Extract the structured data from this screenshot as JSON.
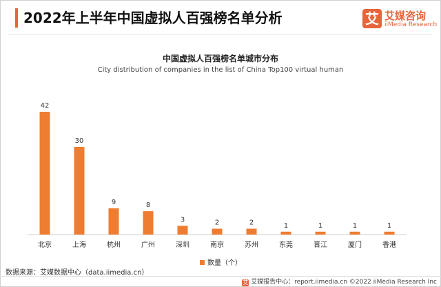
{
  "header": {
    "title": "2022年上半年中国虚拟人百强榜名单分析",
    "brand_cn": "艾媒咨询",
    "brand_en": "iiMedia Research",
    "logo_char": "艾"
  },
  "chart_data": {
    "type": "bar",
    "title": "中国虚拟人百强榜名单城市分布",
    "subtitle": "City distribution of companies in the list of China Top100 virtual human",
    "categories": [
      "北京",
      "上海",
      "杭州",
      "广州",
      "深圳",
      "南京",
      "苏州",
      "东莞",
      "晋江",
      "厦门",
      "香港"
    ],
    "series": [
      {
        "name": "数量（个）",
        "values": [
          42,
          30,
          9,
          8,
          3,
          2,
          2,
          1,
          1,
          1,
          1
        ]
      }
    ],
    "ylim": [
      0,
      42
    ],
    "grid": false,
    "legend": "bottom",
    "bar_color": "#ee7d31"
  },
  "source": "数据来源：艾媒数据中心（data.iimedia.cn）",
  "footer": {
    "logo_char": "艾",
    "text": "艾媒报告中心：report.iimedia.cn  ©2022 iiMedia Research Inc"
  }
}
